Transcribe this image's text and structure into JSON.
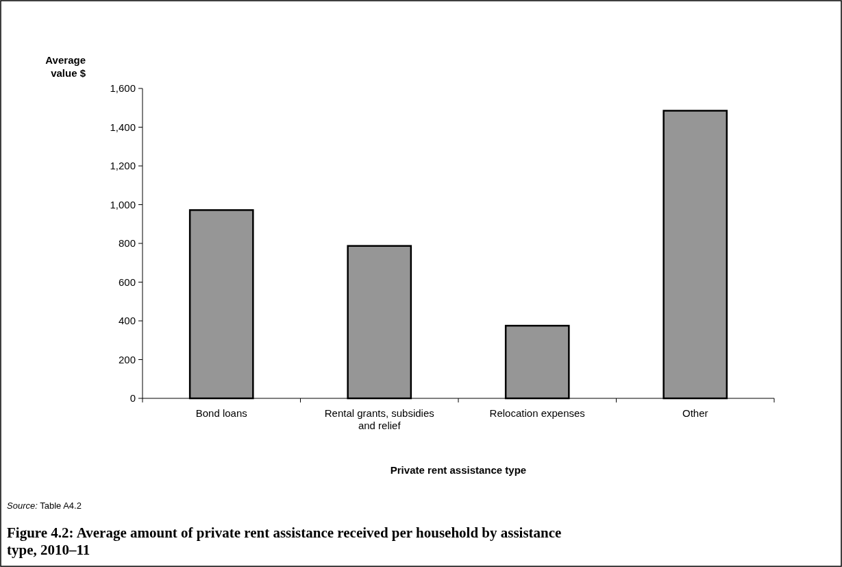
{
  "chart_data": {
    "type": "bar",
    "title": "Figure 4.2: Average amount of private rent assistance received per household by assistance type, 2010–11",
    "xlabel": "Private rent assistance type",
    "ylabel": "Average value $",
    "categories": [
      "Bond loans",
      "Rental grants, subsidies and relief",
      "Relocation expenses",
      "Other"
    ],
    "values": [
      972,
      787,
      375,
      1485
    ],
    "color": "#969696",
    "ylim": [
      0,
      1600
    ],
    "yticks": [
      {
        "value": 0,
        "label": "0"
      },
      {
        "value": 200,
        "label": "200"
      },
      {
        "value": 400,
        "label": "400"
      },
      {
        "value": 600,
        "label": "600"
      },
      {
        "value": 800,
        "label": "800"
      },
      {
        "value": 1000,
        "label": "1,000"
      },
      {
        "value": 1200,
        "label": "1,200"
      },
      {
        "value": 1400,
        "label": "1,400"
      },
      {
        "value": 1600,
        "label": "1,600"
      }
    ],
    "annotations": [
      "Source: Table A4.2"
    ]
  }
}
